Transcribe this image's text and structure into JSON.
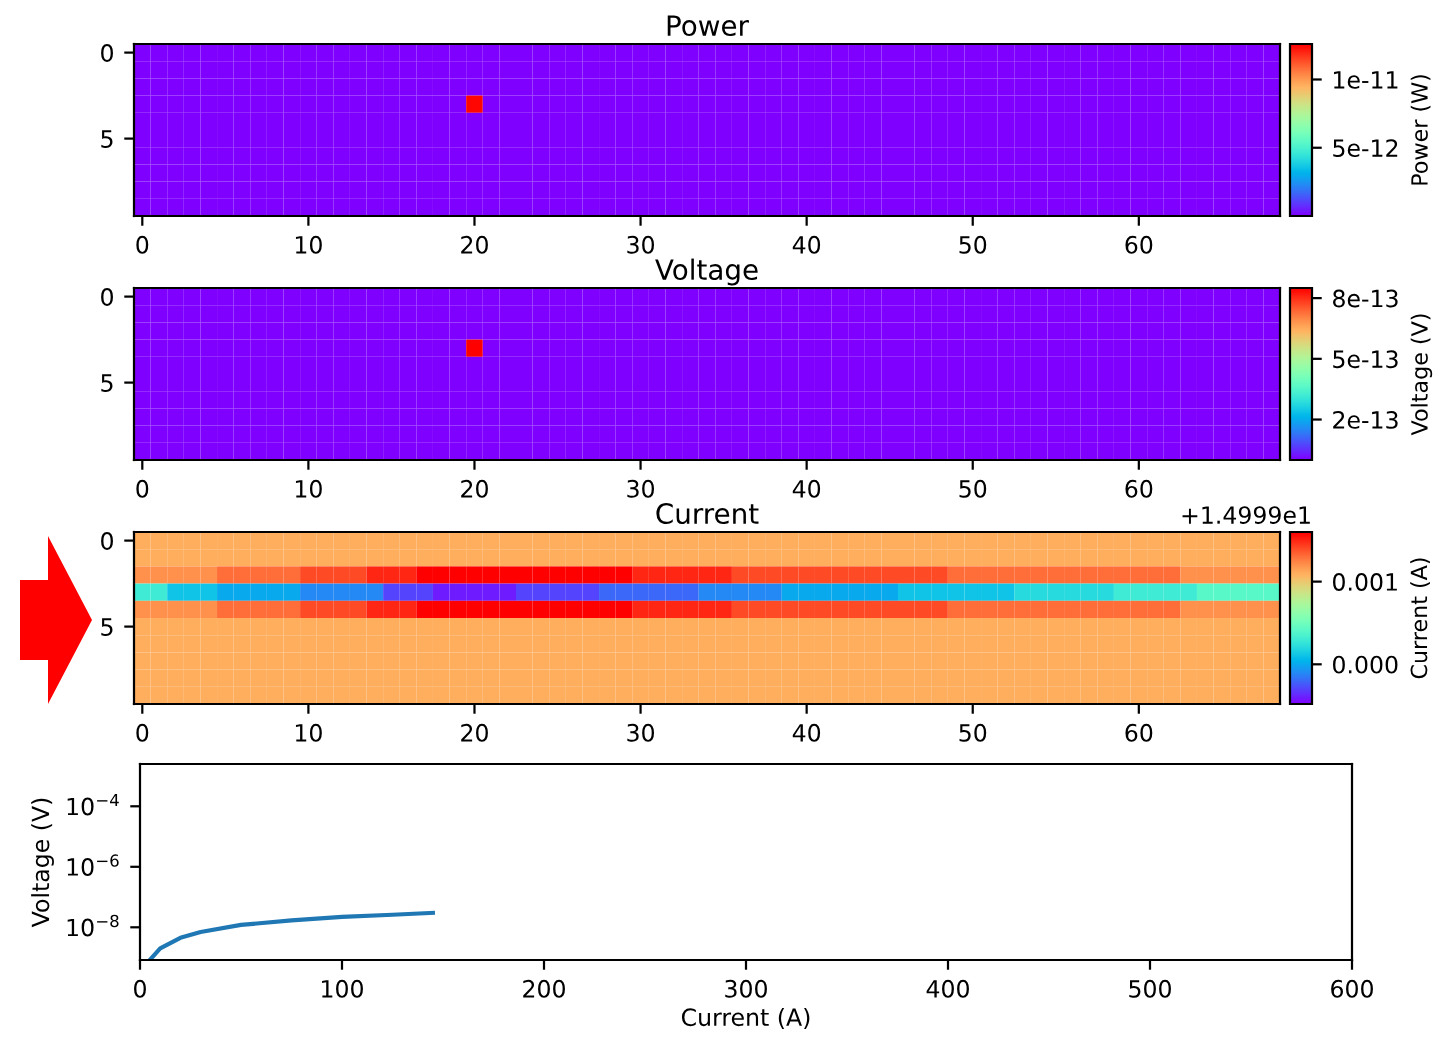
{
  "chart_data": [
    {
      "type": "heatmap",
      "title": "Power",
      "clabel": "Power (W)",
      "clim": [
        0,
        1.26e-11
      ],
      "cticks": [
        {
          "value": 5e-12,
          "label": "5e-12"
        },
        {
          "value": 1e-11,
          "label": "1e-11"
        }
      ],
      "categories": [
        "0",
        null,
        null,
        null,
        null,
        null,
        null,
        null,
        null,
        null,
        "10",
        null,
        null,
        null,
        null,
        null,
        null,
        null,
        null,
        null,
        "20",
        null,
        null,
        null,
        null,
        null,
        null,
        null,
        null,
        null,
        "30",
        null,
        null,
        null,
        null,
        null,
        null,
        null,
        null,
        null,
        "40",
        null,
        null,
        null,
        null,
        null,
        null,
        null,
        null,
        null,
        "50",
        null,
        null,
        null,
        null,
        null,
        null,
        null,
        null,
        null,
        "60",
        null,
        null,
        null,
        null,
        null,
        null,
        null,
        null
      ],
      "y_categories": [
        "0",
        null,
        null,
        null,
        null,
        "5",
        null,
        null,
        null,
        null
      ],
      "cells": [
        [
          0,
          0,
          0,
          0,
          0,
          0,
          0,
          0,
          0,
          0,
          0,
          0,
          0,
          0,
          0,
          0,
          0,
          0,
          0,
          0,
          0,
          0,
          0,
          0,
          0,
          0,
          0,
          0,
          0,
          0,
          0,
          0,
          0,
          0,
          0,
          0,
          0,
          0,
          0,
          0,
          0,
          0,
          0,
          0,
          0,
          0,
          0,
          0,
          0,
          0,
          0,
          0,
          0,
          0,
          0,
          0,
          0,
          0,
          0,
          0,
          0,
          0,
          0,
          0,
          0,
          0,
          0,
          0,
          0
        ],
        [
          0,
          0,
          0,
          0,
          0,
          0,
          0,
          0,
          0,
          0,
          0,
          0,
          0,
          0,
          0,
          0,
          0,
          0,
          0,
          0,
          0,
          0,
          0,
          0,
          0,
          0,
          0,
          0,
          0,
          0,
          0,
          0,
          0,
          0,
          0,
          0,
          0,
          0,
          0,
          0,
          0,
          0,
          0,
          0,
          0,
          0,
          0,
          0,
          0,
          0,
          0,
          0,
          0,
          0,
          0,
          0,
          0,
          0,
          0,
          0,
          0,
          0,
          0,
          0,
          0,
          0,
          0,
          0,
          0
        ],
        [
          0,
          0,
          0,
          0,
          0,
          0,
          0,
          0,
          0,
          0,
          0,
          0,
          0,
          0,
          0,
          0,
          0,
          0,
          0,
          0,
          0,
          0,
          0,
          0,
          0,
          0,
          0,
          0,
          0,
          0,
          0,
          0,
          0,
          0,
          0,
          0,
          0,
          0,
          0,
          0,
          0,
          0,
          0,
          0,
          0,
          0,
          0,
          0,
          0,
          0,
          0,
          0,
          0,
          0,
          0,
          0,
          0,
          0,
          0,
          0,
          0,
          0,
          0,
          0,
          0,
          0,
          0,
          0,
          0
        ],
        [
          0,
          0,
          0,
          0,
          0,
          0,
          0,
          0,
          0,
          0,
          0,
          0,
          0,
          0,
          0,
          0,
          0,
          0,
          0,
          0,
          1.25e-11,
          0,
          0,
          0,
          0,
          0,
          0,
          0,
          0,
          0,
          0,
          0,
          0,
          0,
          0,
          0,
          0,
          0,
          0,
          0,
          0,
          0,
          0,
          0,
          0,
          0,
          0,
          0,
          0,
          0,
          0,
          0,
          0,
          0,
          0,
          0,
          0,
          0,
          0,
          0,
          0,
          0,
          0,
          0,
          0,
          0,
          0,
          0,
          0
        ],
        [
          0,
          0,
          0,
          0,
          0,
          0,
          0,
          0,
          0,
          0,
          0,
          0,
          0,
          0,
          0,
          0,
          0,
          0,
          0,
          0,
          0,
          0,
          0,
          0,
          0,
          0,
          0,
          0,
          0,
          0,
          0,
          0,
          0,
          0,
          0,
          0,
          0,
          0,
          0,
          0,
          0,
          0,
          0,
          0,
          0,
          0,
          0,
          0,
          0,
          0,
          0,
          0,
          0,
          0,
          0,
          0,
          0,
          0,
          0,
          0,
          0,
          0,
          0,
          0,
          0,
          0,
          0,
          0,
          0
        ],
        [
          0,
          0,
          0,
          0,
          0,
          0,
          0,
          0,
          0,
          0,
          0,
          0,
          0,
          0,
          0,
          0,
          0,
          0,
          0,
          0,
          0,
          0,
          0,
          0,
          0,
          0,
          0,
          0,
          0,
          0,
          0,
          0,
          0,
          0,
          0,
          0,
          0,
          0,
          0,
          0,
          0,
          0,
          0,
          0,
          0,
          0,
          0,
          0,
          0,
          0,
          0,
          0,
          0,
          0,
          0,
          0,
          0,
          0,
          0,
          0,
          0,
          0,
          0,
          0,
          0,
          0,
          0,
          0,
          0
        ],
        [
          0,
          0,
          0,
          0,
          0,
          0,
          0,
          0,
          0,
          0,
          0,
          0,
          0,
          0,
          0,
          0,
          0,
          0,
          0,
          0,
          0,
          0,
          0,
          0,
          0,
          0,
          0,
          0,
          0,
          0,
          0,
          0,
          0,
          0,
          0,
          0,
          0,
          0,
          0,
          0,
          0,
          0,
          0,
          0,
          0,
          0,
          0,
          0,
          0,
          0,
          0,
          0,
          0,
          0,
          0,
          0,
          0,
          0,
          0,
          0,
          0,
          0,
          0,
          0,
          0,
          0,
          0,
          0,
          0
        ],
        [
          0,
          0,
          0,
          0,
          0,
          0,
          0,
          0,
          0,
          0,
          0,
          0,
          0,
          0,
          0,
          0,
          0,
          0,
          0,
          0,
          0,
          0,
          0,
          0,
          0,
          0,
          0,
          0,
          0,
          0,
          0,
          0,
          0,
          0,
          0,
          0,
          0,
          0,
          0,
          0,
          0,
          0,
          0,
          0,
          0,
          0,
          0,
          0,
          0,
          0,
          0,
          0,
          0,
          0,
          0,
          0,
          0,
          0,
          0,
          0,
          0,
          0,
          0,
          0,
          0,
          0,
          0,
          0,
          0
        ],
        [
          0,
          0,
          0,
          0,
          0,
          0,
          0,
          0,
          0,
          0,
          0,
          0,
          0,
          0,
          0,
          0,
          0,
          0,
          0,
          0,
          0,
          0,
          0,
          0,
          0,
          0,
          0,
          0,
          0,
          0,
          0,
          0,
          0,
          0,
          0,
          0,
          0,
          0,
          0,
          0,
          0,
          0,
          0,
          0,
          0,
          0,
          0,
          0,
          0,
          0,
          0,
          0,
          0,
          0,
          0,
          0,
          0,
          0,
          0,
          0,
          0,
          0,
          0,
          0,
          0,
          0,
          0,
          0,
          0
        ],
        [
          0,
          0,
          0,
          0,
          0,
          0,
          0,
          0,
          0,
          0,
          0,
          0,
          0,
          0,
          0,
          0,
          0,
          0,
          0,
          0,
          0,
          0,
          0,
          0,
          0,
          0,
          0,
          0,
          0,
          0,
          0,
          0,
          0,
          0,
          0,
          0,
          0,
          0,
          0,
          0,
          0,
          0,
          0,
          0,
          0,
          0,
          0,
          0,
          0,
          0,
          0,
          0,
          0,
          0,
          0,
          0,
          0,
          0,
          0,
          0,
          0,
          0,
          0,
          0,
          0,
          0,
          0,
          0,
          0
        ]
      ]
    },
    {
      "type": "heatmap",
      "title": "Voltage",
      "clabel": "Voltage (V)",
      "clim": [
        0,
        8.5e-13
      ],
      "cticks": [
        {
          "value": 2e-13,
          "label": "2e-13"
        },
        {
          "value": 5e-13,
          "label": "5e-13"
        },
        {
          "value": 8e-13,
          "label": "8e-13"
        }
      ],
      "categories": [
        "0",
        null,
        null,
        null,
        null,
        null,
        null,
        null,
        null,
        null,
        "10",
        null,
        null,
        null,
        null,
        null,
        null,
        null,
        null,
        null,
        "20",
        null,
        null,
        null,
        null,
        null,
        null,
        null,
        null,
        null,
        "30",
        null,
        null,
        null,
        null,
        null,
        null,
        null,
        null,
        null,
        "40",
        null,
        null,
        null,
        null,
        null,
        null,
        null,
        null,
        null,
        "50",
        null,
        null,
        null,
        null,
        null,
        null,
        null,
        null,
        null,
        "60",
        null,
        null,
        null,
        null,
        null,
        null,
        null,
        null
      ],
      "y_categories": [
        "0",
        null,
        null,
        null,
        null,
        "5",
        null,
        null,
        null,
        null
      ],
      "cells": [
        [
          0,
          0,
          0,
          0,
          0,
          0,
          0,
          0,
          0,
          0,
          0,
          0,
          0,
          0,
          0,
          0,
          0,
          0,
          0,
          0,
          0,
          0,
          0,
          0,
          0,
          0,
          0,
          0,
          0,
          0,
          0,
          0,
          0,
          0,
          0,
          0,
          0,
          0,
          0,
          0,
          0,
          0,
          0,
          0,
          0,
          0,
          0,
          0,
          0,
          0,
          0,
          0,
          0,
          0,
          0,
          0,
          0,
          0,
          0,
          0,
          0,
          0,
          0,
          0,
          0,
          0,
          0,
          0,
          0
        ],
        [
          0,
          0,
          0,
          0,
          0,
          0,
          0,
          0,
          0,
          0,
          0,
          0,
          0,
          0,
          0,
          0,
          0,
          0,
          0,
          0,
          0,
          0,
          0,
          0,
          0,
          0,
          0,
          0,
          0,
          0,
          0,
          0,
          0,
          0,
          0,
          0,
          0,
          0,
          0,
          0,
          0,
          0,
          0,
          0,
          0,
          0,
          0,
          0,
          0,
          0,
          0,
          0,
          0,
          0,
          0,
          0,
          0,
          0,
          0,
          0,
          0,
          0,
          0,
          0,
          0,
          0,
          0,
          0,
          0
        ],
        [
          0,
          0,
          0,
          0,
          0,
          0,
          0,
          0,
          0,
          0,
          0,
          0,
          0,
          0,
          0,
          0,
          0,
          0,
          0,
          0,
          0,
          0,
          0,
          0,
          0,
          0,
          0,
          0,
          0,
          0,
          0,
          0,
          0,
          0,
          0,
          0,
          0,
          0,
          0,
          0,
          0,
          0,
          0,
          0,
          0,
          0,
          0,
          0,
          0,
          0,
          0,
          0,
          0,
          0,
          0,
          0,
          0,
          0,
          0,
          0,
          0,
          0,
          0,
          0,
          0,
          0,
          0,
          0,
          0
        ],
        [
          0,
          0,
          0,
          0,
          0,
          0,
          0,
          0,
          0,
          0,
          0,
          0,
          0,
          0,
          0,
          0,
          0,
          0,
          0,
          0,
          8.5e-13,
          0,
          0,
          0,
          0,
          0,
          0,
          0,
          0,
          0,
          0,
          0,
          0,
          0,
          0,
          0,
          0,
          0,
          0,
          0,
          0,
          0,
          0,
          0,
          0,
          0,
          0,
          0,
          0,
          0,
          0,
          0,
          0,
          0,
          0,
          0,
          0,
          0,
          0,
          0,
          0,
          0,
          0,
          0,
          0,
          0,
          0,
          0,
          0
        ],
        [
          0,
          0,
          0,
          0,
          0,
          0,
          0,
          0,
          0,
          0,
          0,
          0,
          0,
          0,
          0,
          0,
          0,
          0,
          0,
          0,
          0,
          0,
          0,
          0,
          0,
          0,
          0,
          0,
          0,
          0,
          0,
          0,
          0,
          0,
          0,
          0,
          0,
          0,
          0,
          0,
          0,
          0,
          0,
          0,
          0,
          0,
          0,
          0,
          0,
          0,
          0,
          0,
          0,
          0,
          0,
          0,
          0,
          0,
          0,
          0,
          0,
          0,
          0,
          0,
          0,
          0,
          0,
          0,
          0
        ],
        [
          0,
          0,
          0,
          0,
          0,
          0,
          0,
          0,
          0,
          0,
          0,
          0,
          0,
          0,
          0,
          0,
          0,
          0,
          0,
          0,
          0,
          0,
          0,
          0,
          0,
          0,
          0,
          0,
          0,
          0,
          0,
          0,
          0,
          0,
          0,
          0,
          0,
          0,
          0,
          0,
          0,
          0,
          0,
          0,
          0,
          0,
          0,
          0,
          0,
          0,
          0,
          0,
          0,
          0,
          0,
          0,
          0,
          0,
          0,
          0,
          0,
          0,
          0,
          0,
          0,
          0,
          0,
          0,
          0
        ],
        [
          0,
          0,
          0,
          0,
          0,
          0,
          0,
          0,
          0,
          0,
          0,
          0,
          0,
          0,
          0,
          0,
          0,
          0,
          0,
          0,
          0,
          0,
          0,
          0,
          0,
          0,
          0,
          0,
          0,
          0,
          0,
          0,
          0,
          0,
          0,
          0,
          0,
          0,
          0,
          0,
          0,
          0,
          0,
          0,
          0,
          0,
          0,
          0,
          0,
          0,
          0,
          0,
          0,
          0,
          0,
          0,
          0,
          0,
          0,
          0,
          0,
          0,
          0,
          0,
          0,
          0,
          0,
          0,
          0
        ],
        [
          0,
          0,
          0,
          0,
          0,
          0,
          0,
          0,
          0,
          0,
          0,
          0,
          0,
          0,
          0,
          0,
          0,
          0,
          0,
          0,
          0,
          0,
          0,
          0,
          0,
          0,
          0,
          0,
          0,
          0,
          0,
          0,
          0,
          0,
          0,
          0,
          0,
          0,
          0,
          0,
          0,
          0,
          0,
          0,
          0,
          0,
          0,
          0,
          0,
          0,
          0,
          0,
          0,
          0,
          0,
          0,
          0,
          0,
          0,
          0,
          0,
          0,
          0,
          0,
          0,
          0,
          0,
          0,
          0
        ],
        [
          0,
          0,
          0,
          0,
          0,
          0,
          0,
          0,
          0,
          0,
          0,
          0,
          0,
          0,
          0,
          0,
          0,
          0,
          0,
          0,
          0,
          0,
          0,
          0,
          0,
          0,
          0,
          0,
          0,
          0,
          0,
          0,
          0,
          0,
          0,
          0,
          0,
          0,
          0,
          0,
          0,
          0,
          0,
          0,
          0,
          0,
          0,
          0,
          0,
          0,
          0,
          0,
          0,
          0,
          0,
          0,
          0,
          0,
          0,
          0,
          0,
          0,
          0,
          0,
          0,
          0,
          0,
          0,
          0
        ],
        [
          0,
          0,
          0,
          0,
          0,
          0,
          0,
          0,
          0,
          0,
          0,
          0,
          0,
          0,
          0,
          0,
          0,
          0,
          0,
          0,
          0,
          0,
          0,
          0,
          0,
          0,
          0,
          0,
          0,
          0,
          0,
          0,
          0,
          0,
          0,
          0,
          0,
          0,
          0,
          0,
          0,
          0,
          0,
          0,
          0,
          0,
          0,
          0,
          0,
          0,
          0,
          0,
          0,
          0,
          0,
          0,
          0,
          0,
          0,
          0,
          0,
          0,
          0,
          0,
          0,
          0,
          0,
          0,
          0
        ]
      ]
    },
    {
      "type": "heatmap",
      "title": "Current",
      "clabel": "Current (A)",
      "clim": [
        -0.00048,
        0.0016
      ],
      "cticks": [
        {
          "value": 0,
          "label": "0.000"
        },
        {
          "value": 0.001,
          "label": "0.001"
        }
      ],
      "annotations": [
        "+1.4999e1"
      ],
      "categories": [
        "0",
        null,
        null,
        null,
        null,
        null,
        null,
        null,
        null,
        null,
        "10",
        null,
        null,
        null,
        null,
        null,
        null,
        null,
        null,
        null,
        "20",
        null,
        null,
        null,
        null,
        null,
        null,
        null,
        null,
        null,
        "30",
        null,
        null,
        null,
        null,
        null,
        null,
        null,
        null,
        null,
        "40",
        null,
        null,
        null,
        null,
        null,
        null,
        null,
        null,
        null,
        "50",
        null,
        null,
        null,
        null,
        null,
        null,
        null,
        null,
        null,
        "60",
        null,
        null,
        null,
        null,
        null,
        null,
        null,
        null
      ],
      "y_categories": [
        "0",
        null,
        null,
        null,
        null,
        "5",
        null,
        null,
        null,
        null
      ],
      "cells": [
        [
          0.0011,
          0.0011,
          0.0011,
          0.0011,
          0.0011,
          0.0011,
          0.0011,
          0.0011,
          0.0011,
          0.0011,
          0.0011,
          0.0011,
          0.0011,
          0.0011,
          0.0011,
          0.0011,
          0.0011,
          0.0011,
          0.0011,
          0.0011,
          0.0011,
          0.0011,
          0.0011,
          0.0011,
          0.0011,
          0.0011,
          0.0011,
          0.0011,
          0.0011,
          0.0011,
          0.0011,
          0.0011,
          0.0011,
          0.0011,
          0.0011,
          0.0011,
          0.0011,
          0.0011,
          0.0011,
          0.0011,
          0.0011,
          0.0011,
          0.0011,
          0.0011,
          0.0011,
          0.0011,
          0.0011,
          0.0011,
          0.0011,
          0.0011,
          0.0011,
          0.0011,
          0.0011,
          0.0011,
          0.0011,
          0.0011,
          0.0011,
          0.0011,
          0.0011,
          0.0011,
          0.0011,
          0.0011,
          0.0011,
          0.0011,
          0.0011,
          0.0011,
          0.0011,
          0.0011,
          0.0011
        ],
        [
          0.0011,
          0.0011,
          0.0011,
          0.0011,
          0.0011,
          0.0011,
          0.0011,
          0.0011,
          0.0011,
          0.0011,
          0.0011,
          0.0011,
          0.0011,
          0.0011,
          0.0011,
          0.0011,
          0.0011,
          0.0011,
          0.0011,
          0.0011,
          0.0011,
          0.0011,
          0.0011,
          0.0011,
          0.0011,
          0.0011,
          0.0011,
          0.0011,
          0.0011,
          0.0011,
          0.0011,
          0.0011,
          0.0011,
          0.0011,
          0.0011,
          0.0011,
          0.0011,
          0.0011,
          0.0011,
          0.0011,
          0.0011,
          0.0011,
          0.0011,
          0.0011,
          0.0011,
          0.0011,
          0.0011,
          0.0011,
          0.0011,
          0.0011,
          0.0011,
          0.0011,
          0.0011,
          0.0011,
          0.0011,
          0.0011,
          0.0011,
          0.0011,
          0.0011,
          0.0011,
          0.0011,
          0.0011,
          0.0011,
          0.0011,
          0.0011,
          0.0011,
          0.0011,
          0.0011,
          0.0011
        ],
        [
          0.0012,
          0.0012,
          0.0012,
          0.0012,
          0.0012,
          0.0013,
          0.0013,
          0.0013,
          0.0013,
          0.0013,
          0.0014,
          0.0014,
          0.0014,
          0.0014,
          0.0015,
          0.0015,
          0.0015,
          0.0016,
          0.0016,
          0.0016,
          0.0016,
          0.0016,
          0.0016,
          0.0016,
          0.0016,
          0.0016,
          0.0016,
          0.0016,
          0.0016,
          0.0016,
          0.0015,
          0.0015,
          0.0015,
          0.0015,
          0.0015,
          0.0015,
          0.0014,
          0.0014,
          0.0014,
          0.0014,
          0.0014,
          0.0014,
          0.0014,
          0.0014,
          0.0014,
          0.0014,
          0.0014,
          0.0014,
          0.0014,
          0.0013,
          0.0013,
          0.0013,
          0.0013,
          0.0013,
          0.0013,
          0.0013,
          0.0013,
          0.0013,
          0.0013,
          0.0013,
          0.0013,
          0.0013,
          0.0013,
          0.0012,
          0.0012,
          0.0012,
          0.0012,
          0.0012,
          0.0012
        ],
        [
          0.0003,
          0.0003,
          0.0001,
          0.0001,
          0.0001,
          0,
          0,
          0,
          0,
          0,
          -0.0001,
          -0.0001,
          -0.0001,
          -0.0001,
          -0.0001,
          -0.0003,
          -0.0003,
          -0.0003,
          -0.0004,
          -0.0004,
          -0.0004,
          -0.0004,
          -0.0004,
          -0.0003,
          -0.0003,
          -0.0003,
          -0.0003,
          -0.0003,
          -0.0002,
          -0.0002,
          -0.0002,
          -0.0002,
          -0.0002,
          -0.0002,
          -0.0001,
          -0.0001,
          -0.0001,
          -0.0001,
          -0.0001,
          0,
          0,
          0,
          0,
          0,
          0,
          0,
          0.0001,
          0.0001,
          0.0001,
          0.0001,
          0.0001,
          0.0001,
          0.0001,
          0.0002,
          0.0002,
          0.0002,
          0.0002,
          0.0002,
          0.0002,
          0.0003,
          0.0003,
          0.0003,
          0.0003,
          0.0003,
          0.0004,
          0.0004,
          0.0004,
          0.0004,
          0.0004
        ],
        [
          0.0012,
          0.0012,
          0.0012,
          0.0012,
          0.0012,
          0.0013,
          0.0013,
          0.0013,
          0.0013,
          0.0013,
          0.0014,
          0.0014,
          0.0014,
          0.0014,
          0.0015,
          0.0015,
          0.0015,
          0.0016,
          0.0016,
          0.0016,
          0.0016,
          0.0016,
          0.0016,
          0.0016,
          0.0016,
          0.0016,
          0.0016,
          0.0016,
          0.0016,
          0.0016,
          0.0015,
          0.0015,
          0.0015,
          0.0015,
          0.0015,
          0.0015,
          0.0014,
          0.0014,
          0.0014,
          0.0014,
          0.0014,
          0.0014,
          0.0014,
          0.0014,
          0.0014,
          0.0014,
          0.0014,
          0.0014,
          0.0014,
          0.0013,
          0.0013,
          0.0013,
          0.0013,
          0.0013,
          0.0013,
          0.0013,
          0.0013,
          0.0013,
          0.0013,
          0.0013,
          0.0013,
          0.0013,
          0.0013,
          0.0012,
          0.0012,
          0.0012,
          0.0012,
          0.0012,
          0.0012
        ],
        [
          0.0011,
          0.0011,
          0.0011,
          0.0011,
          0.0011,
          0.0011,
          0.0011,
          0.0011,
          0.0011,
          0.0011,
          0.0011,
          0.0011,
          0.0011,
          0.0011,
          0.0011,
          0.0011,
          0.0011,
          0.0011,
          0.0011,
          0.0011,
          0.0011,
          0.0011,
          0.0011,
          0.0011,
          0.0011,
          0.0011,
          0.0011,
          0.0011,
          0.0011,
          0.0011,
          0.0011,
          0.0011,
          0.0011,
          0.0011,
          0.0011,
          0.0011,
          0.0011,
          0.0011,
          0.0011,
          0.0011,
          0.0011,
          0.0011,
          0.0011,
          0.0011,
          0.0011,
          0.0011,
          0.0011,
          0.0011,
          0.0011,
          0.0011,
          0.0011,
          0.0011,
          0.0011,
          0.0011,
          0.0011,
          0.0011,
          0.0011,
          0.0011,
          0.0011,
          0.0011,
          0.0011,
          0.0011,
          0.0011,
          0.0011,
          0.0011,
          0.0011,
          0.0011,
          0.0011,
          0.0011
        ],
        [
          0.0011,
          0.0011,
          0.0011,
          0.0011,
          0.0011,
          0.0011,
          0.0011,
          0.0011,
          0.0011,
          0.0011,
          0.0011,
          0.0011,
          0.0011,
          0.0011,
          0.0011,
          0.0011,
          0.0011,
          0.0011,
          0.0011,
          0.0011,
          0.0011,
          0.0011,
          0.0011,
          0.0011,
          0.0011,
          0.0011,
          0.0011,
          0.0011,
          0.0011,
          0.0011,
          0.0011,
          0.0011,
          0.0011,
          0.0011,
          0.0011,
          0.0011,
          0.0011,
          0.0011,
          0.0011,
          0.0011,
          0.0011,
          0.0011,
          0.0011,
          0.0011,
          0.0011,
          0.0011,
          0.0011,
          0.0011,
          0.0011,
          0.0011,
          0.0011,
          0.0011,
          0.0011,
          0.0011,
          0.0011,
          0.0011,
          0.0011,
          0.0011,
          0.0011,
          0.0011,
          0.0011,
          0.0011,
          0.0011,
          0.0011,
          0.0011,
          0.0011,
          0.0011,
          0.0011,
          0.0011
        ],
        [
          0.0011,
          0.0011,
          0.0011,
          0.0011,
          0.0011,
          0.0011,
          0.0011,
          0.0011,
          0.0011,
          0.0011,
          0.0011,
          0.0011,
          0.0011,
          0.0011,
          0.0011,
          0.0011,
          0.0011,
          0.0011,
          0.0011,
          0.0011,
          0.0011,
          0.0011,
          0.0011,
          0.0011,
          0.0011,
          0.0011,
          0.0011,
          0.0011,
          0.0011,
          0.0011,
          0.0011,
          0.0011,
          0.0011,
          0.0011,
          0.0011,
          0.0011,
          0.0011,
          0.0011,
          0.0011,
          0.0011,
          0.0011,
          0.0011,
          0.0011,
          0.0011,
          0.0011,
          0.0011,
          0.0011,
          0.0011,
          0.0011,
          0.0011,
          0.0011,
          0.0011,
          0.0011,
          0.0011,
          0.0011,
          0.0011,
          0.0011,
          0.0011,
          0.0011,
          0.0011,
          0.0011,
          0.0011,
          0.0011,
          0.0011,
          0.0011,
          0.0011,
          0.0011,
          0.0011,
          0.0011
        ],
        [
          0.0011,
          0.0011,
          0.0011,
          0.0011,
          0.0011,
          0.0011,
          0.0011,
          0.0011,
          0.0011,
          0.0011,
          0.0011,
          0.0011,
          0.0011,
          0.0011,
          0.0011,
          0.0011,
          0.0011,
          0.0011,
          0.0011,
          0.0011,
          0.0011,
          0.0011,
          0.0011,
          0.0011,
          0.0011,
          0.0011,
          0.0011,
          0.0011,
          0.0011,
          0.0011,
          0.0011,
          0.0011,
          0.0011,
          0.0011,
          0.0011,
          0.0011,
          0.0011,
          0.0011,
          0.0011,
          0.0011,
          0.0011,
          0.0011,
          0.0011,
          0.0011,
          0.0011,
          0.0011,
          0.0011,
          0.0011,
          0.0011,
          0.0011,
          0.0011,
          0.0011,
          0.0011,
          0.0011,
          0.0011,
          0.0011,
          0.0011,
          0.0011,
          0.0011,
          0.0011,
          0.0011,
          0.0011,
          0.0011,
          0.0011,
          0.0011,
          0.0011,
          0.0011,
          0.0011,
          0.0011
        ],
        [
          0.0011,
          0.0011,
          0.0011,
          0.0011,
          0.0011,
          0.0011,
          0.0011,
          0.0011,
          0.0011,
          0.0011,
          0.0011,
          0.0011,
          0.0011,
          0.0011,
          0.0011,
          0.0011,
          0.0011,
          0.0011,
          0.0011,
          0.0011,
          0.0011,
          0.0011,
          0.0011,
          0.0011,
          0.0011,
          0.0011,
          0.0011,
          0.0011,
          0.0011,
          0.0011,
          0.0011,
          0.0011,
          0.0011,
          0.0011,
          0.0011,
          0.0011,
          0.0011,
          0.0011,
          0.0011,
          0.0011,
          0.0011,
          0.0011,
          0.0011,
          0.0011,
          0.0011,
          0.0011,
          0.0011,
          0.0011,
          0.0011,
          0.0011,
          0.0011,
          0.0011,
          0.0011,
          0.0011,
          0.0011,
          0.0011,
          0.0011,
          0.0011,
          0.0011,
          0.0011,
          0.0011,
          0.0011,
          0.0011,
          0.0011,
          0.0011,
          0.0011,
          0.0011,
          0.0011,
          0.0011
        ]
      ]
    },
    {
      "type": "line",
      "xlabel": "Current (A)",
      "ylabel": "Voltage (V)",
      "log": "y",
      "grid": false,
      "xlim": [
        0,
        600
      ],
      "xticks": [
        0,
        100,
        200,
        300,
        400,
        500,
        600
      ],
      "ylim": [
        8.3e-10,
        0.0025
      ],
      "yticks": [
        {
          "value": 1e-08,
          "label": "10$^{−8}$"
        },
        {
          "value": 1e-06,
          "label": "10$^{−6}$"
        },
        {
          "value": 0.0001,
          "label": "10$^{−4}$"
        }
      ],
      "series": [
        {
          "color": "#1f77b4",
          "x": [
            5,
            10,
            20,
            30,
            50,
            75,
            100,
            125,
            145
          ],
          "values": [
            8.5e-10,
            2e-09,
            4.5e-09,
            7e-09,
            1.2e-08,
            1.7e-08,
            2.2e-08,
            2.6e-08,
            3e-08
          ]
        }
      ]
    }
  ]
}
